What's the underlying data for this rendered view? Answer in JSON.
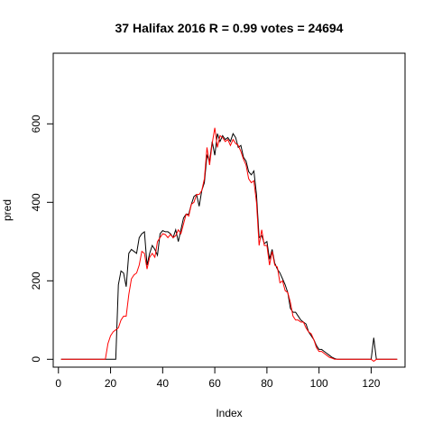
{
  "chart_data": {
    "type": "line",
    "title": "37 Halifax 2016 R = 0.99 votes = 24694",
    "xlabel": "Index",
    "ylabel": "pred",
    "xlim": [
      -2,
      133
    ],
    "ylim": [
      -20,
      780
    ],
    "x_ticks": [
      0,
      20,
      40,
      60,
      80,
      100,
      120
    ],
    "y_ticks": [
      0,
      200,
      400,
      600
    ],
    "grid": false,
    "legend": "none",
    "series": [
      {
        "color": "#000000",
        "x": [
          1,
          2,
          3,
          4,
          5,
          6,
          7,
          8,
          9,
          10,
          11,
          12,
          13,
          14,
          15,
          16,
          17,
          18,
          19,
          20,
          21,
          22,
          23,
          24,
          25,
          26,
          27,
          28,
          29,
          30,
          31,
          32,
          33,
          34,
          35,
          36,
          37,
          38,
          39,
          40,
          41,
          42,
          43,
          44,
          45,
          46,
          47,
          48,
          49,
          50,
          51,
          52,
          53,
          54,
          55,
          56,
          57,
          58,
          59,
          60,
          61,
          62,
          63,
          64,
          65,
          66,
          67,
          68,
          69,
          70,
          71,
          72,
          73,
          74,
          75,
          76,
          77,
          78,
          79,
          80,
          81,
          82,
          83,
          84,
          85,
          86,
          87,
          88,
          89,
          90,
          91,
          92,
          93,
          94,
          95,
          96,
          97,
          98,
          99,
          100,
          101,
          102,
          103,
          104,
          105,
          106,
          107,
          108,
          109,
          110,
          111,
          112,
          113,
          114,
          115,
          116,
          117,
          118,
          119,
          120,
          121,
          122,
          123,
          124,
          125,
          126,
          127,
          128,
          129,
          130
        ],
        "y": [
          0,
          0,
          0,
          0,
          0,
          0,
          0,
          0,
          0,
          0,
          0,
          0,
          0,
          0,
          0,
          0,
          0,
          0,
          0,
          0,
          0,
          0,
          190,
          225,
          220,
          185,
          270,
          280,
          275,
          270,
          310,
          320,
          325,
          240,
          270,
          290,
          280,
          265,
          320,
          328,
          325,
          325,
          320,
          310,
          330,
          300,
          330,
          360,
          370,
          370,
          395,
          415,
          420,
          390,
          430,
          450,
          520,
          505,
          555,
          520,
          575,
          555,
          570,
          560,
          565,
          555,
          575,
          565,
          540,
          545,
          515,
          505,
          478,
          470,
          480,
          420,
          310,
          315,
          295,
          300,
          255,
          280,
          245,
          230,
          220,
          205,
          190,
          170,
          130,
          120,
          120,
          110,
          100,
          95,
          90,
          70,
          60,
          50,
          35,
          25,
          25,
          20,
          15,
          10,
          5,
          2,
          0,
          0,
          0,
          0,
          0,
          0,
          0,
          0,
          0,
          0,
          0,
          0,
          0,
          0,
          55,
          0,
          0,
          0,
          0,
          0,
          0,
          0,
          0,
          0
        ]
      },
      {
        "color": "#ff0000",
        "x": [
          1,
          2,
          3,
          4,
          5,
          6,
          7,
          8,
          9,
          10,
          11,
          12,
          13,
          14,
          15,
          16,
          17,
          18,
          19,
          20,
          21,
          22,
          23,
          24,
          25,
          26,
          27,
          28,
          29,
          30,
          31,
          32,
          33,
          34,
          35,
          36,
          37,
          38,
          39,
          40,
          41,
          42,
          43,
          44,
          45,
          46,
          47,
          48,
          49,
          50,
          51,
          52,
          53,
          54,
          55,
          56,
          57,
          58,
          59,
          60,
          61,
          62,
          63,
          64,
          65,
          66,
          67,
          68,
          69,
          70,
          71,
          72,
          73,
          74,
          75,
          76,
          77,
          78,
          79,
          80,
          81,
          82,
          83,
          84,
          85,
          86,
          87,
          88,
          89,
          90,
          91,
          92,
          93,
          94,
          95,
          96,
          97,
          98,
          99,
          100,
          101,
          102,
          103,
          104,
          105,
          106,
          107,
          108,
          109,
          110,
          111,
          112,
          113,
          114,
          115,
          116,
          117,
          118,
          119,
          120,
          121,
          122,
          123,
          124,
          125,
          126,
          127,
          128,
          129,
          130
        ],
        "y": [
          0,
          0,
          0,
          0,
          0,
          0,
          0,
          0,
          0,
          0,
          0,
          0,
          0,
          0,
          0,
          0,
          0,
          0,
          40,
          60,
          70,
          75,
          80,
          100,
          110,
          110,
          165,
          205,
          215,
          220,
          240,
          275,
          270,
          230,
          260,
          270,
          260,
          300,
          310,
          320,
          318,
          310,
          318,
          310,
          315,
          330,
          320,
          345,
          370,
          365,
          395,
          400,
          420,
          420,
          430,
          460,
          540,
          495,
          550,
          590,
          540,
          570,
          565,
          555,
          560,
          545,
          560,
          550,
          545,
          530,
          510,
          495,
          460,
          450,
          455,
          400,
          290,
          330,
          290,
          290,
          240,
          275,
          240,
          235,
          195,
          200,
          175,
          170,
          145,
          110,
          100,
          100,
          95,
          95,
          80,
          70,
          65,
          50,
          30,
          20,
          20,
          15,
          10,
          5,
          3,
          0,
          0,
          0,
          0,
          0,
          0,
          0,
          0,
          0,
          0,
          0,
          0,
          0,
          0,
          0,
          -5,
          0,
          0,
          0,
          0,
          0,
          0,
          0,
          0,
          0
        ]
      }
    ]
  }
}
